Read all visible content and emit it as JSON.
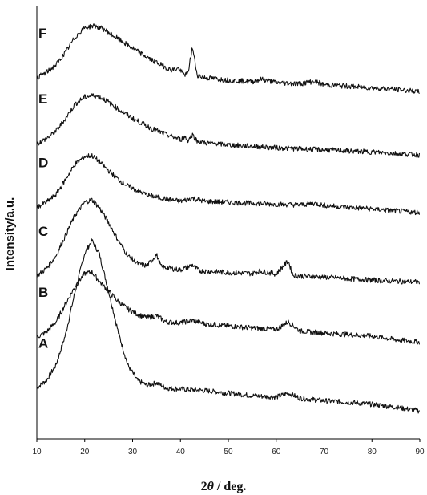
{
  "chart_data": {
    "type": "line",
    "xlabel_prefix": "2",
    "xlabel_symbol": "θ",
    "xlabel_suffix": " / deg.",
    "ylabel": "Intensity/a.u.",
    "xlim": [
      10,
      90
    ],
    "xticks": [
      10,
      20,
      30,
      40,
      50,
      60,
      70,
      80,
      90
    ],
    "grid": false,
    "y_ticks_shown": false,
    "series": [
      {
        "name": "A",
        "baseline_offset": 0,
        "points": [
          [
            10,
            0.4
          ],
          [
            12,
            0.55
          ],
          [
            14,
            0.85
          ],
          [
            16,
            1.45
          ],
          [
            18,
            2.3
          ],
          [
            20,
            3.05
          ],
          [
            21.5,
            3.3
          ],
          [
            23,
            3.05
          ],
          [
            25,
            2.3
          ],
          [
            27,
            1.5
          ],
          [
            29,
            0.85
          ],
          [
            31,
            0.55
          ],
          [
            33,
            0.45
          ],
          [
            35,
            0.5
          ],
          [
            37,
            0.4
          ],
          [
            40,
            0.38
          ],
          [
            45,
            0.35
          ],
          [
            50,
            0.3
          ],
          [
            55,
            0.25
          ],
          [
            60,
            0.22
          ],
          [
            62.5,
            0.3
          ],
          [
            65,
            0.2
          ],
          [
            70,
            0.15
          ],
          [
            75,
            0.12
          ],
          [
            80,
            0.08
          ],
          [
            85,
            0.02
          ],
          [
            90,
            -0.05
          ]
        ]
      },
      {
        "name": "B",
        "baseline_offset": 1.4,
        "points": [
          [
            10,
            0.0
          ],
          [
            12,
            0.1
          ],
          [
            14,
            0.3
          ],
          [
            16,
            0.65
          ],
          [
            18,
            1.0
          ],
          [
            20,
            1.25
          ],
          [
            21.5,
            1.28
          ],
          [
            23,
            1.1
          ],
          [
            25,
            0.9
          ],
          [
            27,
            0.7
          ],
          [
            29,
            0.55
          ],
          [
            31,
            0.45
          ],
          [
            33,
            0.38
          ],
          [
            35,
            0.42
          ],
          [
            37,
            0.3
          ],
          [
            40,
            0.28
          ],
          [
            42.5,
            0.33
          ],
          [
            45,
            0.26
          ],
          [
            50,
            0.22
          ],
          [
            55,
            0.18
          ],
          [
            60,
            0.15
          ],
          [
            62.5,
            0.3
          ],
          [
            65,
            0.12
          ],
          [
            70,
            0.08
          ],
          [
            75,
            0.05
          ],
          [
            80,
            0.02
          ],
          [
            85,
            -0.05
          ],
          [
            90,
            -0.1
          ]
        ]
      },
      {
        "name": "C",
        "baseline_offset": 2.6,
        "points": [
          [
            10,
            0.0
          ],
          [
            12,
            0.15
          ],
          [
            14,
            0.4
          ],
          [
            16,
            0.8
          ],
          [
            18,
            1.2
          ],
          [
            20,
            1.45
          ],
          [
            21.5,
            1.5
          ],
          [
            23,
            1.35
          ],
          [
            25,
            1.05
          ],
          [
            27,
            0.7
          ],
          [
            29,
            0.4
          ],
          [
            31,
            0.25
          ],
          [
            33,
            0.2
          ],
          [
            35,
            0.42
          ],
          [
            36,
            0.18
          ],
          [
            40,
            0.12
          ],
          [
            42.5,
            0.22
          ],
          [
            44,
            0.1
          ],
          [
            50,
            0.07
          ],
          [
            55,
            0.05
          ],
          [
            56.5,
            0.1
          ],
          [
            60,
            0.04
          ],
          [
            62.5,
            0.3
          ],
          [
            63.5,
            0.02
          ],
          [
            65,
            0.0
          ],
          [
            70,
            -0.02
          ],
          [
            75,
            -0.05
          ],
          [
            80,
            -0.08
          ],
          [
            85,
            -0.1
          ],
          [
            90,
            -0.12
          ]
        ]
      },
      {
        "name": "D",
        "baseline_offset": 3.95,
        "points": [
          [
            10,
            0.0
          ],
          [
            12,
            0.1
          ],
          [
            14,
            0.25
          ],
          [
            16,
            0.55
          ],
          [
            18,
            0.85
          ],
          [
            20,
            1.0
          ],
          [
            21.5,
            1.02
          ],
          [
            23,
            0.9
          ],
          [
            25,
            0.72
          ],
          [
            27,
            0.55
          ],
          [
            29,
            0.42
          ],
          [
            31,
            0.33
          ],
          [
            33,
            0.25
          ],
          [
            35,
            0.2
          ],
          [
            38,
            0.15
          ],
          [
            40,
            0.12
          ],
          [
            42.5,
            0.18
          ],
          [
            45,
            0.12
          ],
          [
            50,
            0.1
          ],
          [
            55,
            0.08
          ],
          [
            60,
            0.06
          ],
          [
            65,
            0.05
          ],
          [
            68,
            0.08
          ],
          [
            70,
            0.04
          ],
          [
            75,
            0.0
          ],
          [
            80,
            -0.03
          ],
          [
            85,
            -0.07
          ],
          [
            90,
            -0.1
          ]
        ]
      },
      {
        "name": "E",
        "baseline_offset": 5.2,
        "points": [
          [
            10,
            0.0
          ],
          [
            12,
            0.1
          ],
          [
            14,
            0.25
          ],
          [
            16,
            0.5
          ],
          [
            18,
            0.78
          ],
          [
            20,
            0.92
          ],
          [
            22,
            0.95
          ],
          [
            24,
            0.88
          ],
          [
            26,
            0.75
          ],
          [
            28,
            0.62
          ],
          [
            30,
            0.5
          ],
          [
            32,
            0.4
          ],
          [
            34,
            0.3
          ],
          [
            36,
            0.22
          ],
          [
            38,
            0.15
          ],
          [
            40,
            0.08
          ],
          [
            41,
            0.14
          ],
          [
            41.5,
            0.06
          ],
          [
            42.5,
            0.18
          ],
          [
            43.5,
            0.05
          ],
          [
            45,
            0.02
          ],
          [
            50,
            -0.02
          ],
          [
            55,
            -0.05
          ],
          [
            60,
            -0.08
          ],
          [
            65,
            -0.1
          ],
          [
            70,
            -0.12
          ],
          [
            75,
            -0.14
          ],
          [
            80,
            -0.16
          ],
          [
            85,
            -0.19
          ],
          [
            90,
            -0.22
          ]
        ]
      },
      {
        "name": "F",
        "baseline_offset": 6.5,
        "points": [
          [
            10,
            0.0
          ],
          [
            12,
            0.1
          ],
          [
            14,
            0.25
          ],
          [
            16,
            0.5
          ],
          [
            18,
            0.8
          ],
          [
            20,
            0.98
          ],
          [
            22,
            1.02
          ],
          [
            24,
            0.95
          ],
          [
            26,
            0.82
          ],
          [
            28,
            0.7
          ],
          [
            30,
            0.58
          ],
          [
            32,
            0.46
          ],
          [
            34,
            0.35
          ],
          [
            36,
            0.25
          ],
          [
            38,
            0.15
          ],
          [
            39.5,
            0.18
          ],
          [
            40.5,
            0.08
          ],
          [
            41.5,
            0.05
          ],
          [
            42.5,
            0.6
          ],
          [
            43.5,
            0.05
          ],
          [
            45,
            0.0
          ],
          [
            50,
            -0.05
          ],
          [
            55,
            -0.08
          ],
          [
            57,
            -0.03
          ],
          [
            60,
            -0.1
          ],
          [
            65,
            -0.12
          ],
          [
            68,
            -0.07
          ],
          [
            70,
            -0.14
          ],
          [
            75,
            -0.17
          ],
          [
            80,
            -0.2
          ],
          [
            85,
            -0.23
          ],
          [
            90,
            -0.28
          ]
        ]
      }
    ]
  }
}
